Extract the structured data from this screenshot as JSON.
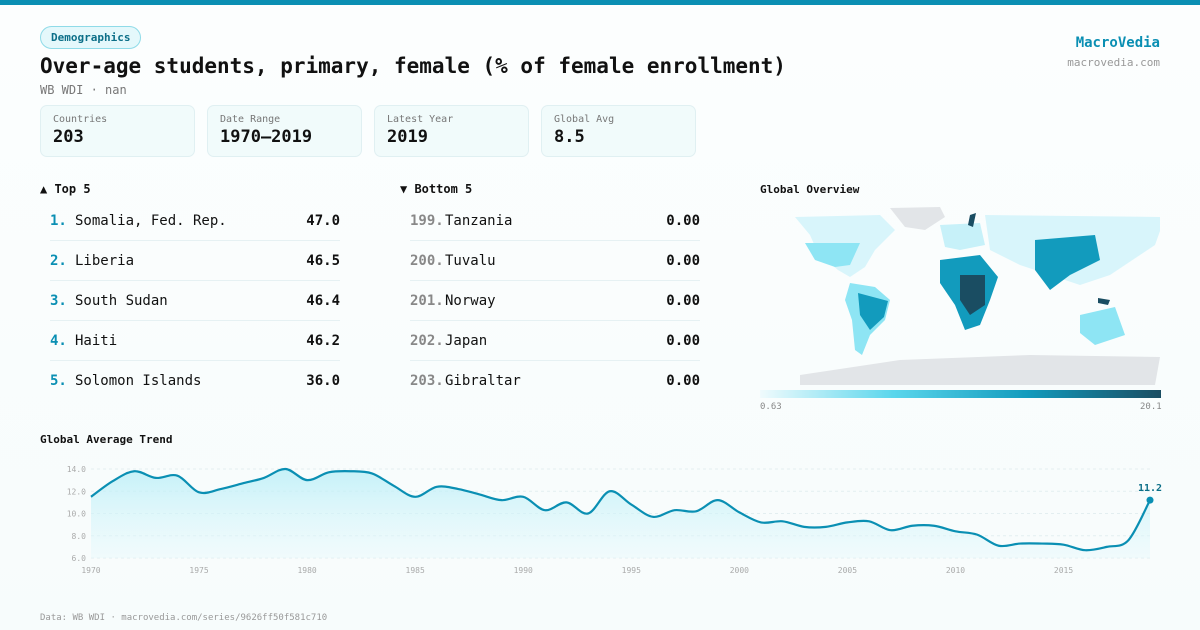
{
  "header": {
    "tag": "Demographics",
    "title": "Over-age students, primary, female (% of female enrollment)",
    "subtitle": "WB WDI · nan",
    "brand": "MacroVedia",
    "brand_url": "macrovedia.com"
  },
  "stats": [
    {
      "label": "Countries",
      "value": "203"
    },
    {
      "label": "Date Range",
      "value": "1970–2019"
    },
    {
      "label": "Latest Year",
      "value": "2019"
    },
    {
      "label": "Global Avg",
      "value": "8.5"
    }
  ],
  "top5": {
    "title": "▲ Top 5",
    "items": [
      {
        "rank": "1.",
        "name": "Somalia, Fed. Rep.",
        "value": "47.0"
      },
      {
        "rank": "2.",
        "name": "Liberia",
        "value": "46.5"
      },
      {
        "rank": "3.",
        "name": "South Sudan",
        "value": "46.4"
      },
      {
        "rank": "4.",
        "name": "Haiti",
        "value": "46.2"
      },
      {
        "rank": "5.",
        "name": "Solomon Islands",
        "value": "36.0"
      }
    ]
  },
  "bottom5": {
    "title": "▼ Bottom 5",
    "items": [
      {
        "rank": "199.",
        "name": "Tanzania",
        "value": "0.00"
      },
      {
        "rank": "200.",
        "name": "Tuvalu",
        "value": "0.00"
      },
      {
        "rank": "201.",
        "name": "Norway",
        "value": "0.00"
      },
      {
        "rank": "202.",
        "name": "Japan",
        "value": "0.00"
      },
      {
        "rank": "203.",
        "name": "Gibraltar",
        "value": "0.00"
      }
    ]
  },
  "map": {
    "title": "Global Overview",
    "legend_min": "0.63",
    "legend_max": "20.1",
    "colors": [
      "#f0fbfd",
      "#5ad6ec",
      "#129bbd",
      "#1a4d62"
    ]
  },
  "chart_data": {
    "type": "area",
    "title": "Global Average Trend",
    "xlabel": "",
    "ylabel": "",
    "ylim": [
      6,
      14
    ],
    "yticks": [
      "6.0",
      "8.0",
      "10.0",
      "12.0",
      "14.0"
    ],
    "xticks": [
      "1970",
      "1975",
      "1980",
      "1985",
      "1990",
      "1995",
      "2000",
      "2005",
      "2010",
      "2015"
    ],
    "x": [
      1970,
      1971,
      1972,
      1973,
      1974,
      1975,
      1976,
      1977,
      1978,
      1979,
      1980,
      1981,
      1982,
      1983,
      1984,
      1985,
      1986,
      1987,
      1988,
      1989,
      1990,
      1991,
      1992,
      1993,
      1994,
      1995,
      1996,
      1997,
      1998,
      1999,
      2000,
      2001,
      2002,
      2003,
      2004,
      2005,
      2006,
      2007,
      2008,
      2009,
      2010,
      2011,
      2012,
      2013,
      2014,
      2015,
      2016,
      2017,
      2018,
      2019
    ],
    "values": [
      11.5,
      12.9,
      13.8,
      13.2,
      13.4,
      11.9,
      12.2,
      12.7,
      13.2,
      14.0,
      13.0,
      13.7,
      13.8,
      13.6,
      12.5,
      11.5,
      12.4,
      12.2,
      11.7,
      11.2,
      11.5,
      10.3,
      11.0,
      10.0,
      12.0,
      10.8,
      9.7,
      10.3,
      10.2,
      11.2,
      10.1,
      9.2,
      9.3,
      8.8,
      8.8,
      9.2,
      9.3,
      8.5,
      8.9,
      8.9,
      8.4,
      8.1,
      7.1,
      7.3,
      7.3,
      7.2,
      6.7,
      7.0,
      7.6,
      11.2
    ],
    "last_label": "11.2",
    "color": "#0a8fb3",
    "grid": true
  },
  "footer": "Data: WB WDI · macrovedia.com/series/9626ff50f581c710"
}
